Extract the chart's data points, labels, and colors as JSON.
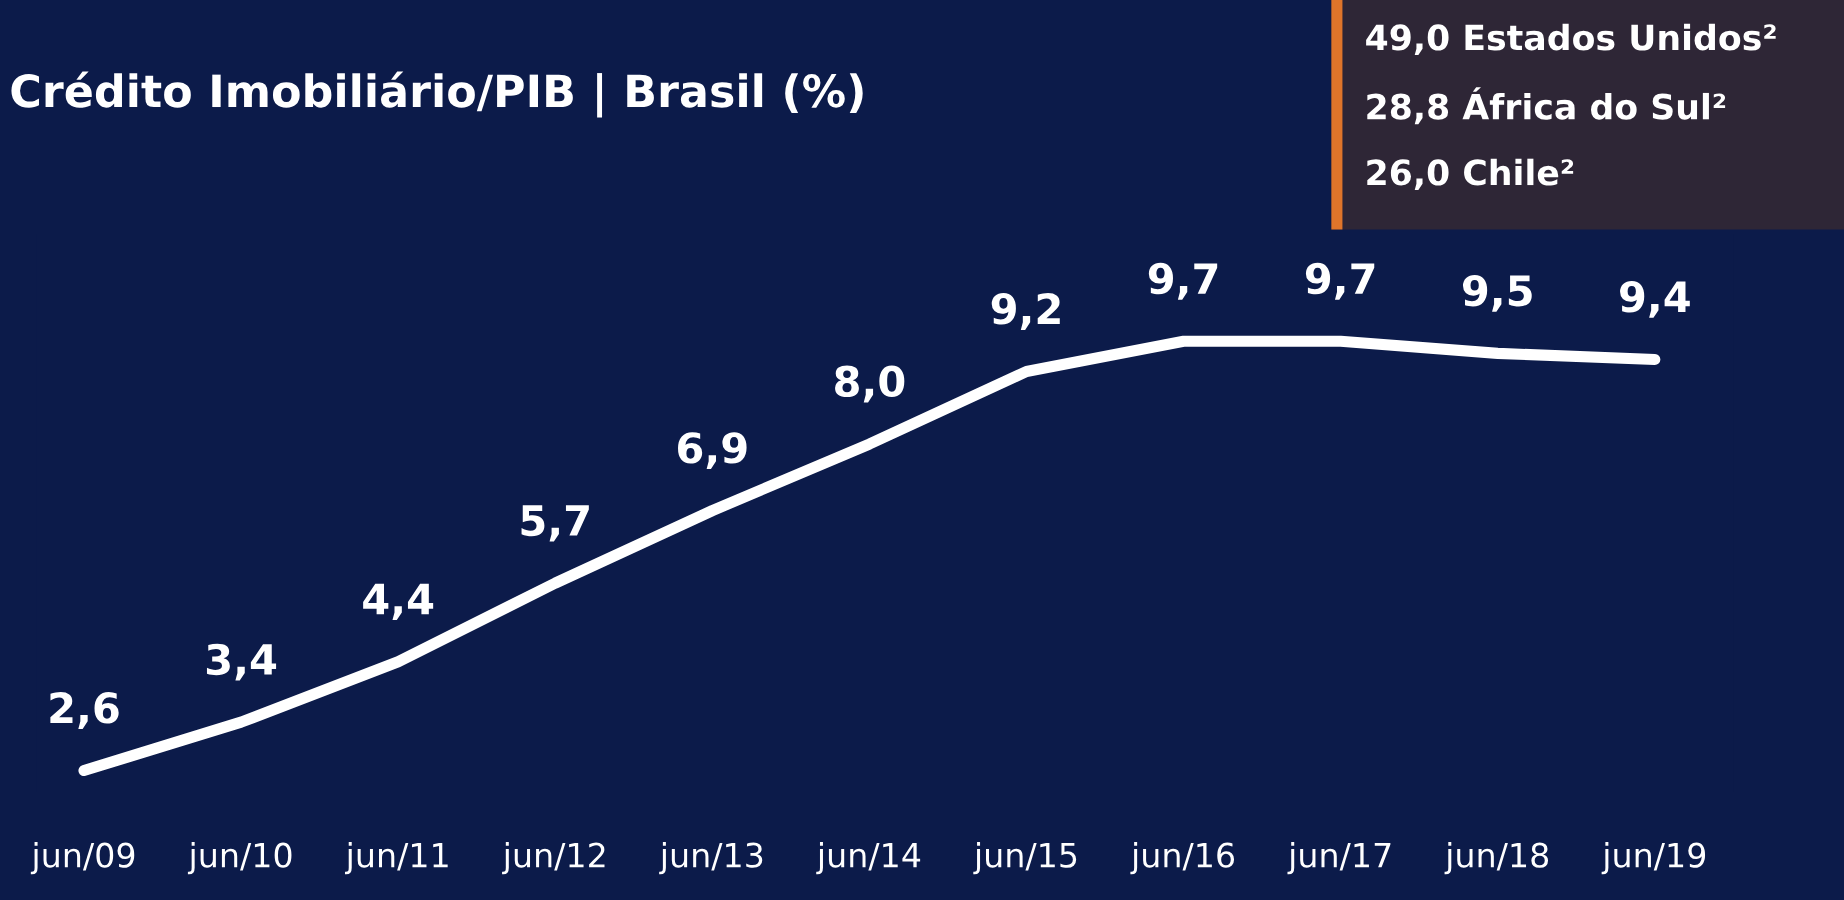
{
  "chart_data": {
    "type": "line",
    "title": "Crédito Imobiliário/PIB | Brasil (%)",
    "categories": [
      "jun/09",
      "jun/10",
      "jun/11",
      "jun/12",
      "jun/13",
      "jun/14",
      "jun/15",
      "jun/16",
      "jun/17",
      "jun/18",
      "jun/19"
    ],
    "series": [
      {
        "color": "#ffffff",
        "values": [
          2.6,
          3.4,
          4.4,
          5.7,
          6.9,
          8.0,
          9.2,
          9.7,
          9.7,
          9.5,
          9.4
        ],
        "value_labels": [
          "2,6",
          "3,4",
          "4,4",
          "5,7",
          "6,9",
          "8,0",
          "9,2",
          "9,7",
          "9,7",
          "9,5",
          "9,4"
        ]
      }
    ],
    "annotations": [
      "49,0 Estados Unidos²",
      "28,8 África do Sul²",
      "26,0 Chile²"
    ],
    "grid": false,
    "legend": false,
    "marker": "none",
    "line_style": "solid"
  }
}
